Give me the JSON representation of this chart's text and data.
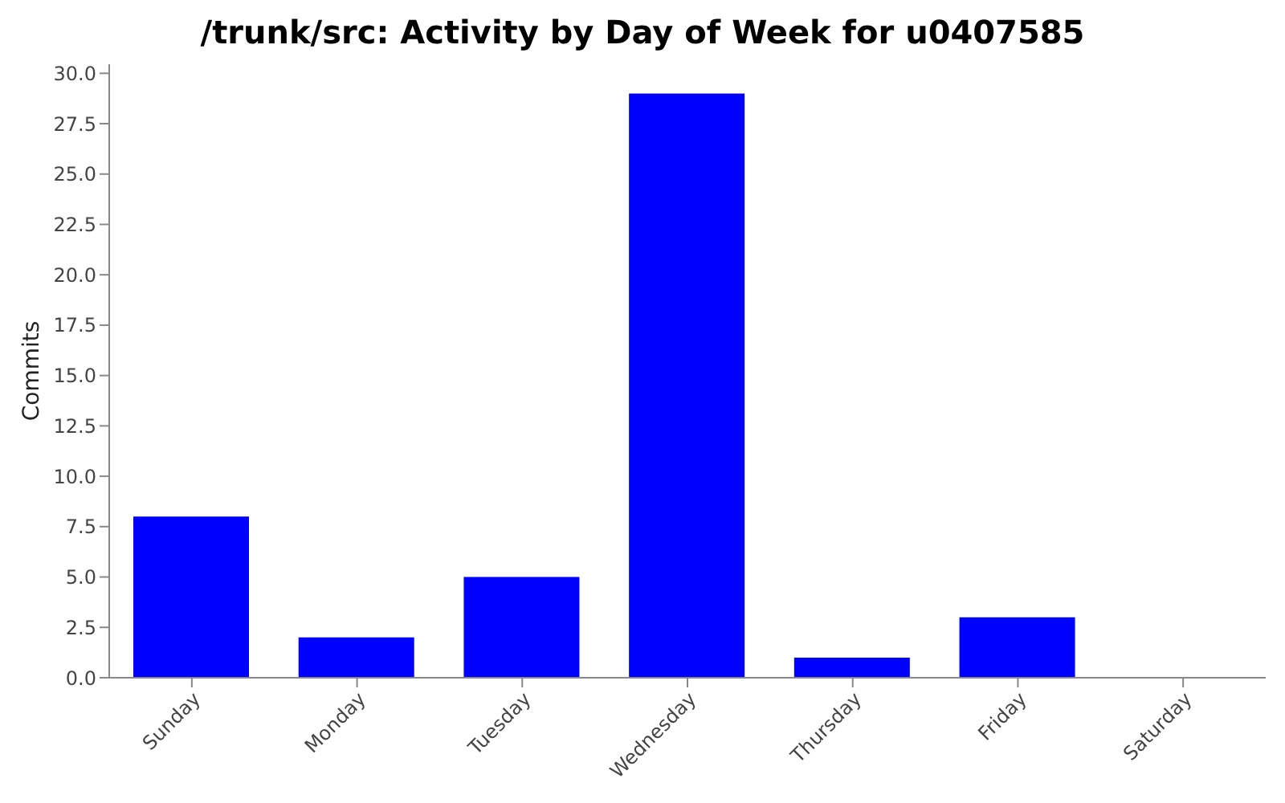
{
  "chart_data": {
    "type": "bar",
    "title": "/trunk/src: Activity by Day of Week for u0407585",
    "ylabel": "Commits",
    "categories": [
      "Sunday",
      "Monday",
      "Tuesday",
      "Wednesday",
      "Thursday",
      "Friday",
      "Saturday"
    ],
    "values": [
      8,
      2,
      5,
      29,
      1,
      3,
      0
    ],
    "color": "#0000ff",
    "ylim": [
      0,
      30.45
    ],
    "yticks": [
      {
        "value": 0,
        "label": "0.0"
      },
      {
        "value": 2.5,
        "label": "2.5"
      },
      {
        "value": 5,
        "label": "5.0"
      },
      {
        "value": 7.5,
        "label": "7.5"
      },
      {
        "value": 10,
        "label": "10.0"
      },
      {
        "value": 12.5,
        "label": "12.5"
      },
      {
        "value": 15,
        "label": "15.0"
      },
      {
        "value": 17.5,
        "label": "17.5"
      },
      {
        "value": 20,
        "label": "20.0"
      },
      {
        "value": 22.5,
        "label": "22.5"
      },
      {
        "value": 25,
        "label": "25.0"
      },
      {
        "value": 27.5,
        "label": "27.5"
      },
      {
        "value": 30,
        "label": "30.0"
      }
    ],
    "grid": false,
    "legend": false
  }
}
